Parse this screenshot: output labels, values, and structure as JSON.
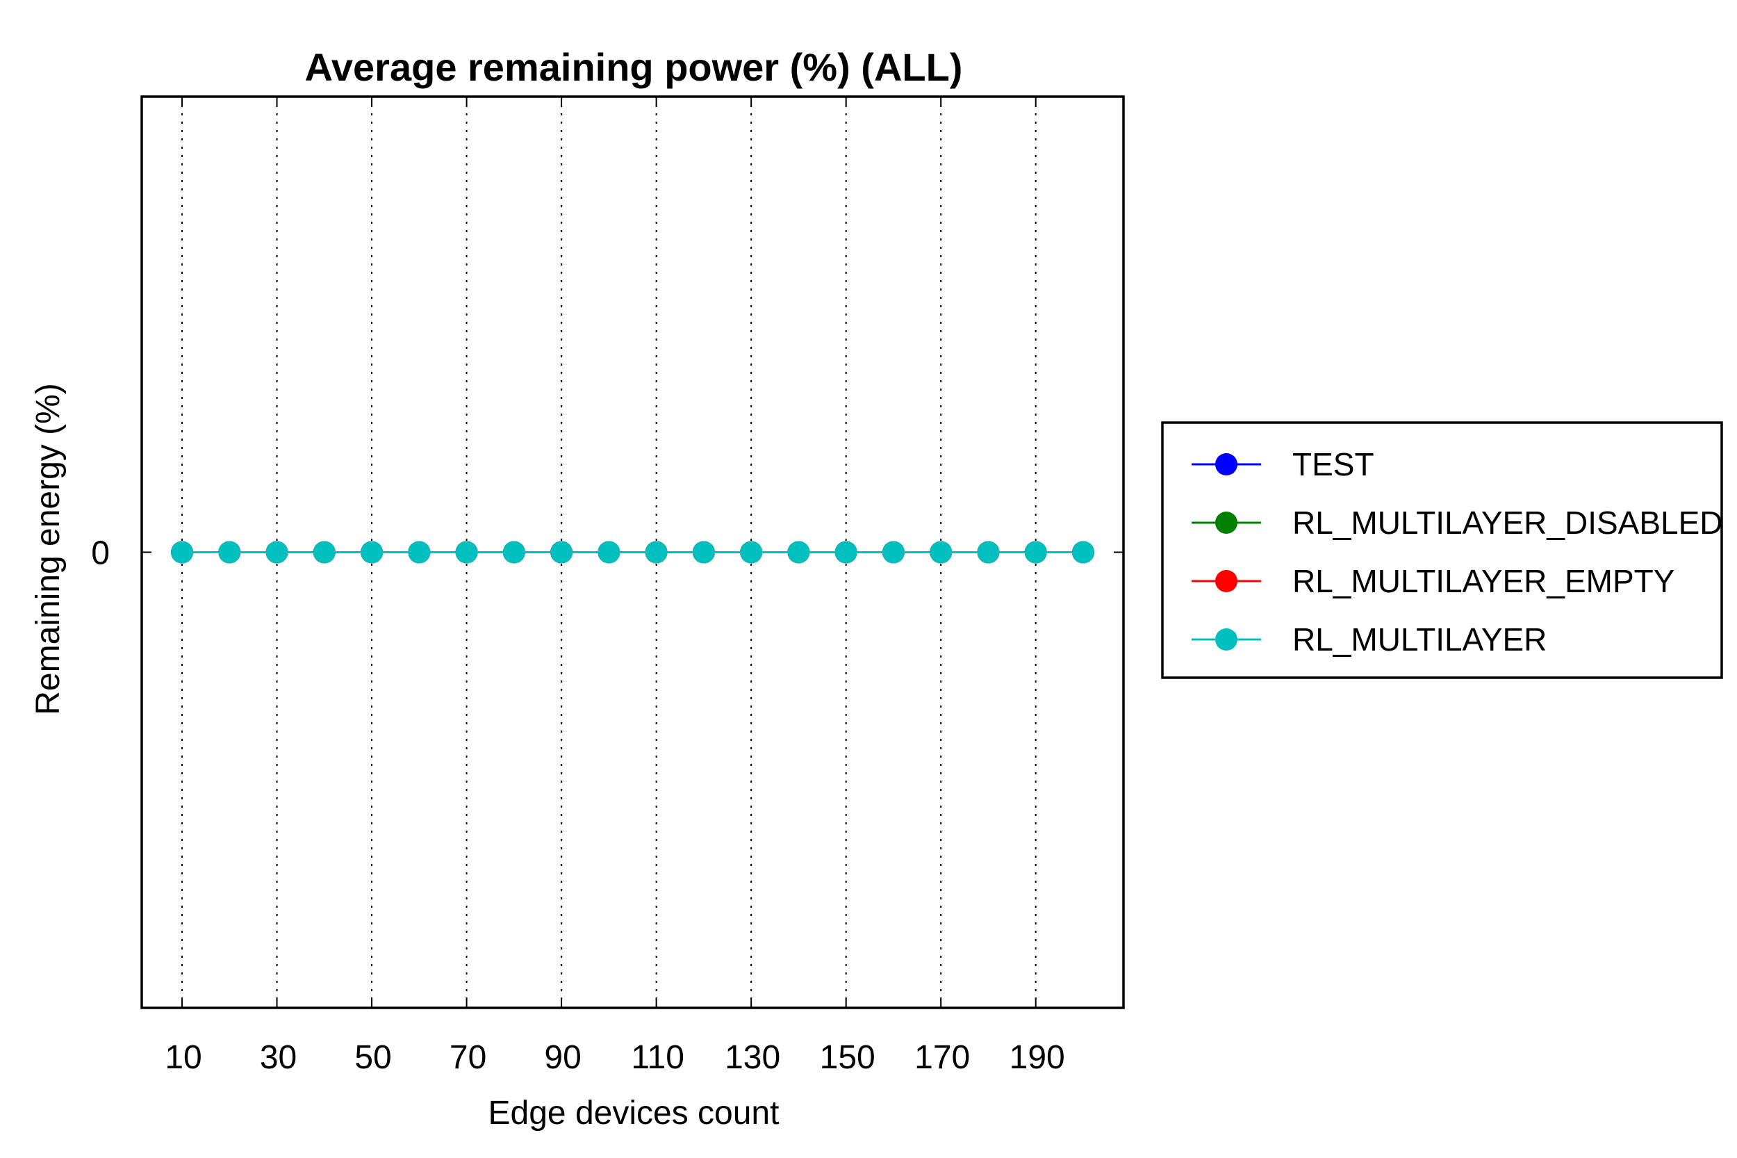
{
  "chart_data": {
    "type": "line",
    "title": "Average remaining power (%) (ALL)",
    "xlabel": "Edge devices count",
    "ylabel": "Remaining energy (%)",
    "x": [
      10,
      20,
      30,
      40,
      50,
      60,
      70,
      80,
      90,
      100,
      110,
      120,
      130,
      140,
      150,
      160,
      170,
      180,
      190,
      200
    ],
    "x_ticks": [
      10,
      30,
      50,
      70,
      90,
      110,
      130,
      150,
      170,
      190
    ],
    "y_ticks": [
      0
    ],
    "xlim": [
      1.5,
      208.5
    ],
    "ylim": [
      -1,
      1
    ],
    "grid": "x-dotted",
    "legend_position": "right",
    "series": [
      {
        "name": "TEST",
        "color": "#0000ff",
        "values": [
          0,
          0,
          0,
          0,
          0,
          0,
          0,
          0,
          0,
          0,
          0,
          0,
          0,
          0,
          0,
          0,
          0,
          0,
          0,
          0
        ]
      },
      {
        "name": "RL_MULTILAYER_DISABLED",
        "color": "#008000",
        "values": [
          0,
          0,
          0,
          0,
          0,
          0,
          0,
          0,
          0,
          0,
          0,
          0,
          0,
          0,
          0,
          0,
          0,
          0,
          0,
          0
        ]
      },
      {
        "name": "RL_MULTILAYER_EMPTY",
        "color": "#ff0000",
        "values": [
          0,
          0,
          0,
          0,
          0,
          0,
          0,
          0,
          0,
          0,
          0,
          0,
          0,
          0,
          0,
          0,
          0,
          0,
          0,
          0
        ]
      },
      {
        "name": "RL_MULTILAYER",
        "color": "#00bfbf",
        "values": [
          0,
          0,
          0,
          0,
          0,
          0,
          0,
          0,
          0,
          0,
          0,
          0,
          0,
          0,
          0,
          0,
          0,
          0,
          0,
          0
        ]
      }
    ]
  }
}
